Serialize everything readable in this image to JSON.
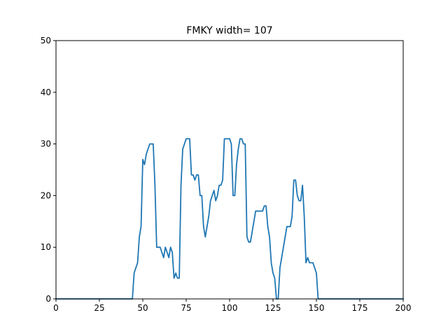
{
  "chart_data": {
    "type": "line",
    "title": "FMKY width= 107",
    "xlabel": "",
    "ylabel": "",
    "xlim": [
      0,
      200
    ],
    "ylim": [
      0,
      50
    ],
    "xticks": [
      0,
      25,
      50,
      75,
      100,
      125,
      150,
      175,
      200
    ],
    "yticks": [
      0,
      10,
      20,
      30,
      40,
      50
    ],
    "grid": false,
    "colors": {
      "line": "#1f77b4",
      "axes": "#000000",
      "background": "#ffffff"
    },
    "series": [
      {
        "x": [
          0,
          44,
          45,
          47,
          48,
          49,
          50,
          51,
          52,
          53,
          54,
          55,
          56,
          57,
          58,
          59,
          60,
          61,
          62,
          63,
          64,
          65,
          66,
          67,
          68,
          69,
          70,
          71,
          72,
          73,
          74,
          75,
          76,
          77,
          78,
          79,
          80,
          81,
          82,
          83,
          84,
          85,
          86,
          88,
          89,
          90,
          91,
          92,
          93,
          94,
          95,
          96,
          97,
          98,
          99,
          100,
          101,
          102,
          103,
          104,
          105,
          106,
          107,
          108,
          109,
          110,
          111,
          112,
          113,
          114,
          115,
          116,
          117,
          118,
          119,
          120,
          121,
          122,
          123,
          124,
          125,
          126,
          127,
          128,
          129,
          130,
          132,
          133,
          134,
          135,
          136,
          137,
          138,
          139,
          140,
          141,
          142,
          143,
          144,
          145,
          146,
          147,
          148,
          149,
          150,
          151,
          200
        ],
        "y": [
          0,
          0,
          5,
          7,
          12,
          14,
          27,
          26,
          28,
          29,
          30,
          30,
          30,
          22,
          10,
          10,
          10,
          9,
          8,
          10,
          9,
          8,
          10,
          9,
          4,
          5,
          4,
          4,
          22,
          29,
          30,
          31,
          31,
          31,
          24,
          24,
          23,
          24,
          24,
          20,
          20,
          14,
          12,
          16,
          19,
          20,
          21,
          19,
          20,
          22,
          22,
          23,
          31,
          31,
          31,
          31,
          30,
          20,
          20,
          26,
          29,
          31,
          31,
          30,
          30,
          12,
          11,
          11,
          13,
          15,
          17,
          17,
          17,
          17,
          17,
          18,
          18,
          14,
          12,
          7,
          5,
          4,
          0,
          0,
          6,
          8,
          12,
          14,
          14,
          14,
          16,
          23,
          23,
          20,
          19,
          19,
          22,
          16,
          7,
          8,
          7,
          7,
          7,
          6,
          5,
          0,
          0
        ]
      }
    ]
  }
}
